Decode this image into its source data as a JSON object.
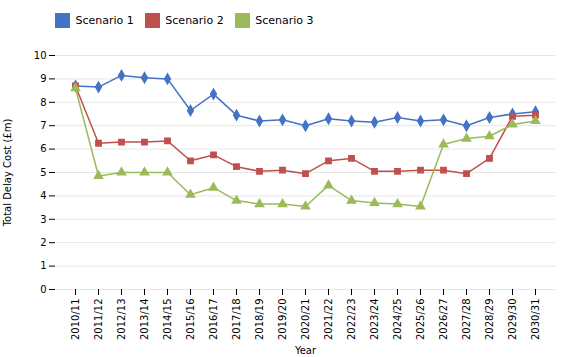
{
  "chart_data": {
    "type": "line",
    "xlabel": "Year",
    "ylabel": "Total Delay Cost (£m)",
    "categories": [
      "2010/11",
      "2011/12",
      "2012/13",
      "2013/14",
      "2014/15",
      "2015/16",
      "2016/17",
      "2017/18",
      "2018/19",
      "2019/20",
      "2020/21",
      "2021/22",
      "2022/23",
      "2023/24",
      "2024/25",
      "2025/26",
      "2026/27",
      "2027/28",
      "2028/29",
      "2029/30",
      "2030/31"
    ],
    "series": [
      {
        "name": "Scenario 1",
        "color": "#4472C4",
        "marker": "diamond",
        "values": [
          8.7,
          8.65,
          9.15,
          9.05,
          9.0,
          7.65,
          8.35,
          7.45,
          7.2,
          7.25,
          7.0,
          7.3,
          7.2,
          7.15,
          7.35,
          7.2,
          7.25,
          7.0,
          7.35,
          7.5,
          7.6
        ]
      },
      {
        "name": "Scenario 2",
        "color": "#C0504D",
        "marker": "square",
        "values": [
          8.7,
          6.25,
          6.3,
          6.3,
          6.35,
          5.5,
          5.75,
          5.25,
          5.05,
          5.1,
          4.95,
          5.5,
          5.6,
          5.05,
          5.05,
          5.1,
          5.1,
          4.95,
          5.6,
          7.4,
          7.45
        ]
      },
      {
        "name": "Scenario 3",
        "color": "#9BBB59",
        "marker": "triangle",
        "values": [
          8.6,
          4.85,
          5.0,
          5.0,
          5.0,
          4.05,
          4.35,
          3.8,
          3.65,
          3.65,
          3.55,
          4.45,
          3.8,
          3.7,
          3.65,
          3.55,
          6.2,
          6.45,
          6.55,
          7.05,
          7.2
        ]
      }
    ],
    "ylim": [
      0,
      10
    ],
    "yticks": [
      0,
      1,
      2,
      3,
      4,
      5,
      6,
      7,
      8,
      9,
      10
    ],
    "grid": true,
    "legend": "right"
  }
}
